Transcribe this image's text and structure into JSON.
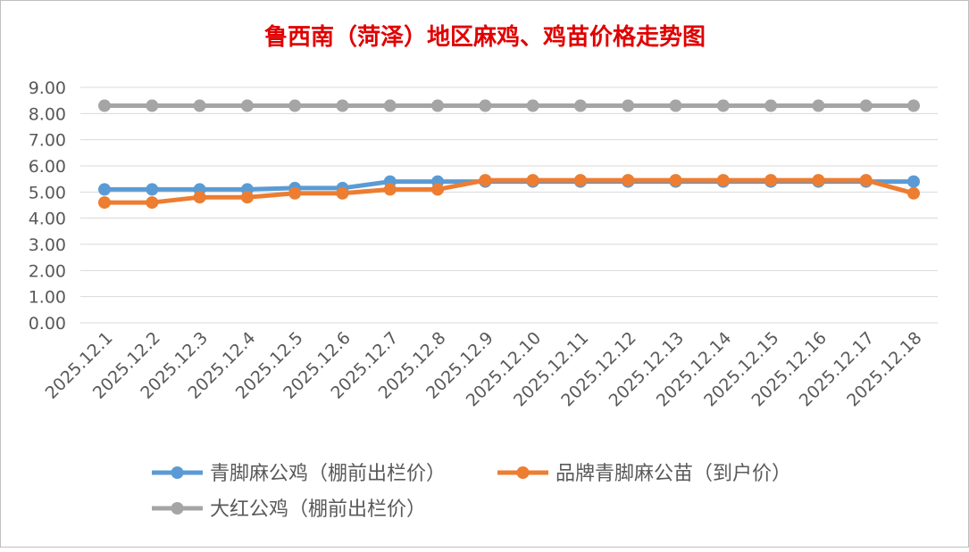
{
  "chart_data": {
    "type": "line",
    "title": "鲁西南（菏泽）地区麻鸡、鸡苗价格走势图",
    "xlabel": "",
    "ylabel": "",
    "categories": [
      "2025.12.1",
      "2025.12.2",
      "2025.12.3",
      "2025.12.4",
      "2025.12.5",
      "2025.12.6",
      "2025.12.7",
      "2025.12.8",
      "2025.12.9",
      "2025.12.10",
      "2025.12.11",
      "2025.12.12",
      "2025.12.13",
      "2025.12.14",
      "2025.12.15",
      "2025.12.16",
      "2025.12.17",
      "2025.12.18"
    ],
    "ylim": [
      0,
      9
    ],
    "yticks": [
      "0.00",
      "1.00",
      "2.00",
      "3.00",
      "4.00",
      "5.00",
      "6.00",
      "7.00",
      "8.00",
      "9.00"
    ],
    "grid": true,
    "legend_position": "bottom",
    "series": [
      {
        "name": "青脚麻公鸡（棚前出栏价）",
        "color": "#5B9BD5",
        "values": [
          5.1,
          5.1,
          5.1,
          5.1,
          5.15,
          5.15,
          5.4,
          5.4,
          5.4,
          5.4,
          5.4,
          5.4,
          5.4,
          5.4,
          5.4,
          5.4,
          5.4,
          5.4
        ]
      },
      {
        "name": "品牌青脚麻公苗（到户价）",
        "color": "#ED7D31",
        "values": [
          4.6,
          4.6,
          4.8,
          4.8,
          4.95,
          4.95,
          5.1,
          5.1,
          5.45,
          5.45,
          5.45,
          5.45,
          5.45,
          5.45,
          5.45,
          5.45,
          5.45,
          4.95
        ]
      },
      {
        "name": "大红公鸡（棚前出栏价）",
        "color": "#A5A5A5",
        "values": [
          8.3,
          8.3,
          8.3,
          8.3,
          8.3,
          8.3,
          8.3,
          8.3,
          8.3,
          8.3,
          8.3,
          8.3,
          8.3,
          8.3,
          8.3,
          8.3,
          8.3,
          8.3
        ]
      }
    ]
  },
  "colors": {
    "title": "#E00000",
    "grid": "#D9D9D9",
    "axis_text": "#595959",
    "frame": "#BFBFBF"
  }
}
